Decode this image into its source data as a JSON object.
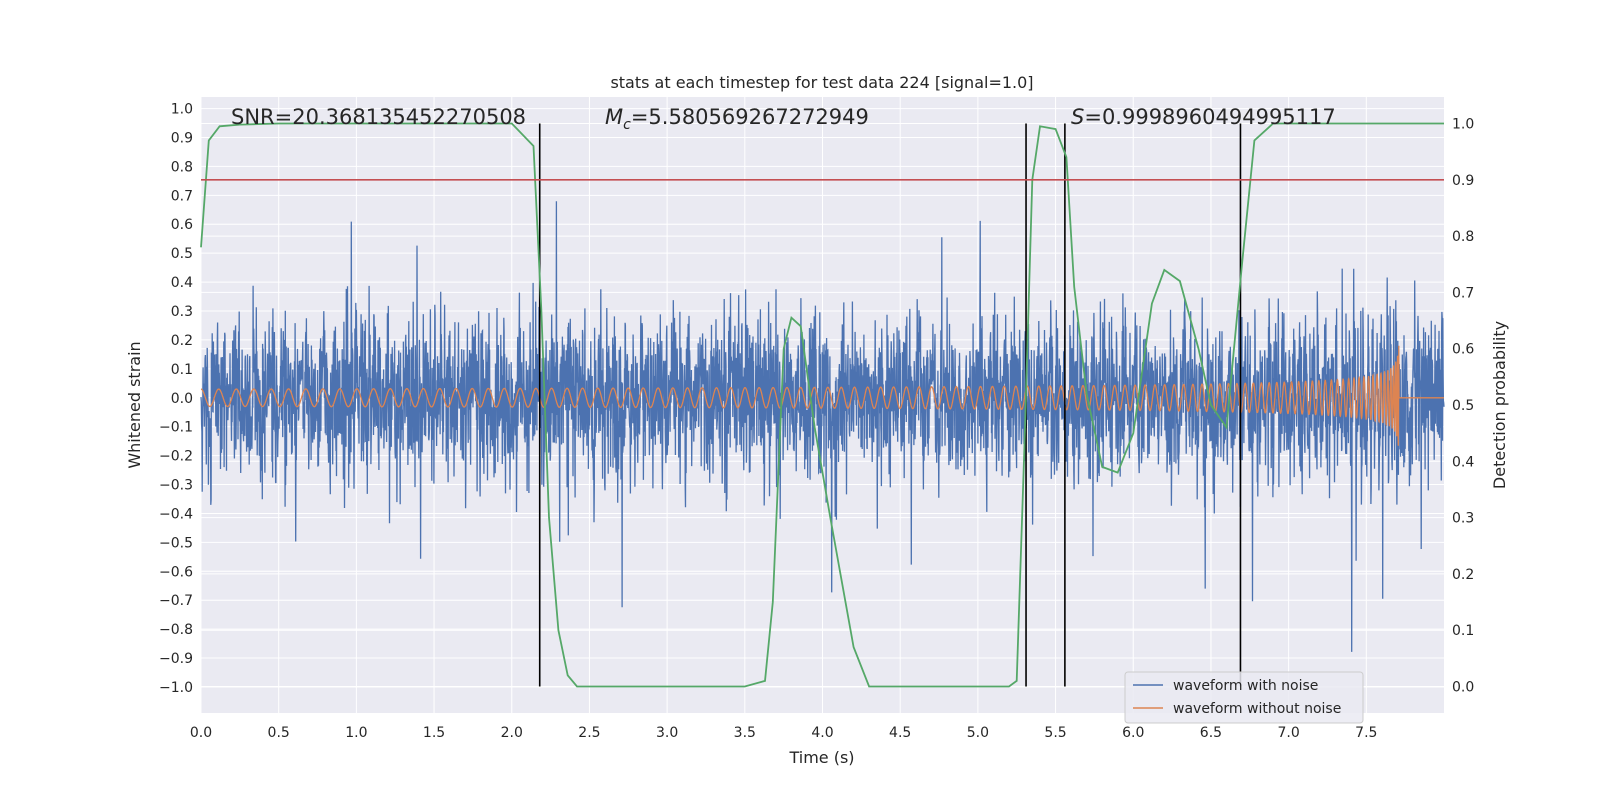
{
  "chart_data": {
    "type": "line",
    "title": "stats at each timestep for test data 224 [signal=1.0]",
    "xlabel": "Time (s)",
    "ylabel_left": "Whitened strain",
    "ylabel_right": "Detection probability",
    "xlim": [
      0.0,
      8.0
    ],
    "ylim_left": [
      -1.09,
      1.04
    ],
    "ylim_right": [
      -0.047,
      1.047
    ],
    "x_ticks": [
      "0.0",
      "0.5",
      "1.0",
      "1.5",
      "2.0",
      "2.5",
      "3.0",
      "3.5",
      "4.0",
      "4.5",
      "5.0",
      "5.5",
      "6.0",
      "6.5",
      "7.0",
      "7.5"
    ],
    "y_left_ticks": [
      "1.0",
      "0.9",
      "0.8",
      "0.7",
      "0.6",
      "0.5",
      "0.4",
      "0.3",
      "0.2",
      "0.1",
      "0.0",
      "−0.1",
      "−0.2",
      "−0.3",
      "−0.4",
      "−0.5",
      "−0.6",
      "−0.7",
      "−0.8",
      "−0.9",
      "−1.0"
    ],
    "y_right_ticks": [
      "1.0",
      "0.9",
      "0.8",
      "0.7",
      "0.6",
      "0.5",
      "0.4",
      "0.3",
      "0.2",
      "0.1",
      "0.0"
    ],
    "grid": true,
    "legend_placement": "lower-right",
    "threshold": 0.9,
    "event_lines_x": [
      2.18,
      5.31,
      5.56,
      6.69
    ],
    "annotations": {
      "snr": "SNR=20.368135452270508",
      "mc_symbol": "M",
      "mc_sub": "c",
      "mc_value": "=5.580569267272949",
      "s_symbol": "S",
      "s_value": "=0.9998960494995117"
    },
    "series": [
      {
        "name": "waveform with noise",
        "color": "#4c72b0",
        "axis": "left",
        "amplitude_scale": 0.45
      },
      {
        "name": "waveform without noise",
        "color": "#dd8452",
        "axis": "left",
        "chirp_start_amplitude": 0.03,
        "chirp_peak_amplitude": 0.45,
        "merger_time": 7.71
      },
      {
        "name": "",
        "color": "#55a868",
        "axis": "right",
        "x": [
          0.0,
          0.05,
          0.12,
          0.25,
          0.5,
          1.0,
          1.5,
          2.0,
          2.14,
          2.19,
          2.24,
          2.3,
          2.36,
          2.42,
          2.5,
          3.0,
          3.5,
          3.63,
          3.68,
          3.75,
          3.8,
          3.86,
          3.95,
          4.05,
          4.2,
          4.3,
          4.5,
          5.0,
          5.2,
          5.25,
          5.3,
          5.35,
          5.4,
          5.5,
          5.57,
          5.62,
          5.7,
          5.8,
          5.9,
          6.0,
          6.12,
          6.2,
          6.3,
          6.42,
          6.5,
          6.6,
          6.7,
          6.78,
          6.9,
          7.0,
          7.5,
          8.0
        ],
        "values": [
          0.78,
          0.97,
          0.995,
          0.998,
          1.0,
          1.0,
          1.0,
          1.0,
          0.96,
          0.67,
          0.3,
          0.1,
          0.02,
          0.0,
          0.0,
          0.0,
          0.0,
          0.01,
          0.15,
          0.6,
          0.655,
          0.64,
          0.46,
          0.3,
          0.07,
          0.0,
          0.0,
          0.0,
          0.0,
          0.01,
          0.43,
          0.9,
          0.995,
          0.99,
          0.94,
          0.71,
          0.52,
          0.39,
          0.38,
          0.45,
          0.68,
          0.74,
          0.72,
          0.6,
          0.5,
          0.46,
          0.75,
          0.97,
          1.0,
          1.0,
          1.0,
          1.0
        ]
      },
      {
        "name": "",
        "color": "#c44e52",
        "axis": "right",
        "x": [
          0.0,
          8.0
        ],
        "values": [
          0.9,
          0.9
        ]
      }
    ]
  }
}
